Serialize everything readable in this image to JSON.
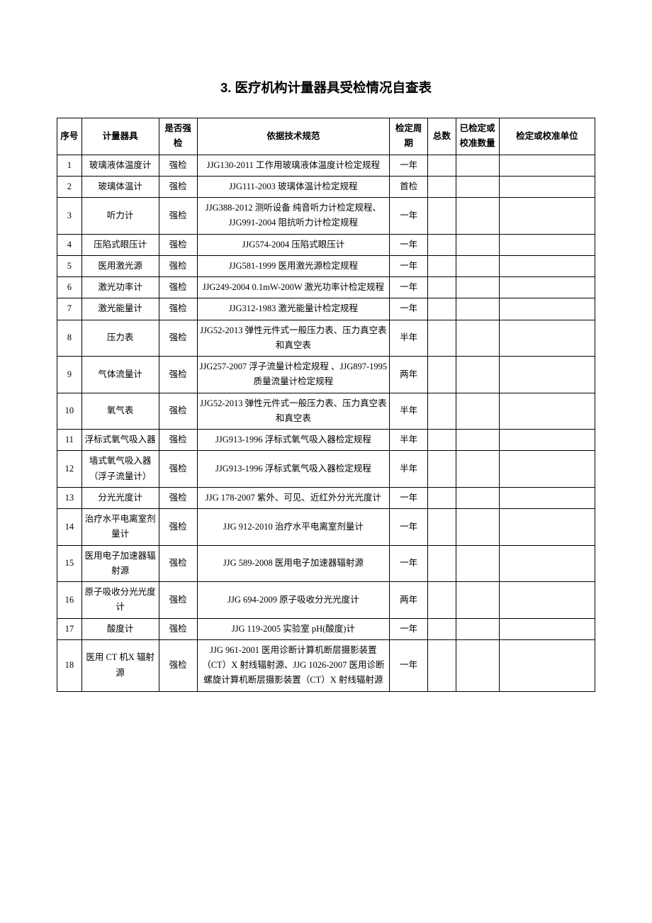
{
  "title": "3. 医疗机构计量器具受检情况自查表",
  "columns": {
    "seq": "序号",
    "instrument": "计量器具",
    "mandatory": "是否强检",
    "spec": "依据技术规范",
    "period": "检定周期",
    "total": "总数",
    "done": "已检定或校准数量",
    "unit": "检定或校准单位"
  },
  "rows": [
    {
      "seq": "1",
      "instrument": "玻璃液体温度计",
      "mandatory": "强检",
      "spec": "JJG130-2011 工作用玻璃液体温度计检定规程",
      "period": "一年",
      "total": "",
      "done": "",
      "unit": ""
    },
    {
      "seq": "2",
      "instrument": "玻璃体温计",
      "mandatory": "强检",
      "spec": "JJG111-2003 玻璃体温计检定规程",
      "period": "首检",
      "total": "",
      "done": "",
      "unit": ""
    },
    {
      "seq": "3",
      "instrument": "听力计",
      "mandatory": "强检",
      "spec": "JJG388-2012 测听设备 纯音听力计检定规程、JJG991-2004 阻抗听力计检定规程",
      "period": "一年",
      "total": "",
      "done": "",
      "unit": ""
    },
    {
      "seq": "4",
      "instrument": "压陷式眼压计",
      "mandatory": "强检",
      "spec": "JJG574-2004 压陷式眼压计",
      "period": "一年",
      "total": "",
      "done": "",
      "unit": ""
    },
    {
      "seq": "5",
      "instrument": "医用激光源",
      "mandatory": "强检",
      "spec": "JJG581-1999 医用激光源检定规程",
      "period": "一年",
      "total": "",
      "done": "",
      "unit": ""
    },
    {
      "seq": "6",
      "instrument": "激光功率计",
      "mandatory": "强检",
      "spec": "JJG249-2004 0.1mW-200W 激光功率计检定规程",
      "period": "一年",
      "total": "",
      "done": "",
      "unit": ""
    },
    {
      "seq": "7",
      "instrument": "激光能量计",
      "mandatory": "强检",
      "spec": "JJG312-1983 激光能量计检定规程",
      "period": "一年",
      "total": "",
      "done": "",
      "unit": ""
    },
    {
      "seq": "8",
      "instrument": "压力表",
      "mandatory": "强检",
      "spec": "JJG52-2013 弹性元件式一般压力表、压力真空表和真空表",
      "period": "半年",
      "total": "",
      "done": "",
      "unit": ""
    },
    {
      "seq": "9",
      "instrument": "气体流量计",
      "mandatory": "强检",
      "spec": "JJG257-2007 浮子流量计检定规程 、JJG897-1995 质量流量计检定规程",
      "period": "两年",
      "total": "",
      "done": "",
      "unit": ""
    },
    {
      "seq": "10",
      "instrument": "氧气表",
      "mandatory": "强检",
      "spec": "JJG52-2013 弹性元件式一般压力表、压力真空表和真空表",
      "period": "半年",
      "total": "",
      "done": "",
      "unit": ""
    },
    {
      "seq": "11",
      "instrument": "浮标式氧气吸入器",
      "mandatory": "强检",
      "spec": "JJG913-1996 浮标式氧气吸入器检定规程",
      "period": "半年",
      "total": "",
      "done": "",
      "unit": ""
    },
    {
      "seq": "12",
      "instrument": "墙式氧气吸入器（浮子流量计）",
      "mandatory": "强检",
      "spec": "JJG913-1996 浮标式氧气吸入器检定规程",
      "period": "半年",
      "total": "",
      "done": "",
      "unit": ""
    },
    {
      "seq": "13",
      "instrument": "分光光度计",
      "mandatory": "强检",
      "spec": "JJG 178-2007 紫外、可见、近红外分光光度计",
      "period": "一年",
      "total": "",
      "done": "",
      "unit": ""
    },
    {
      "seq": "14",
      "instrument": "治疗水平电离室剂量计",
      "mandatory": "强检",
      "spec": "JJG 912-2010 治疗水平电离室剂量计",
      "period": "一年",
      "total": "",
      "done": "",
      "unit": ""
    },
    {
      "seq": "15",
      "instrument": "医用电子加速器辐射源",
      "mandatory": "强检",
      "spec": "JJG 589-2008 医用电子加速器辐射源",
      "period": "一年",
      "total": "",
      "done": "",
      "unit": ""
    },
    {
      "seq": "16",
      "instrument": "原子吸收分光光度计",
      "mandatory": "强检",
      "spec": "JJG 694-2009 原子吸收分光光度计",
      "period": "两年",
      "total": "",
      "done": "",
      "unit": ""
    },
    {
      "seq": "17",
      "instrument": "酸度计",
      "mandatory": "强检",
      "spec": "JJG 119-2005 实验室 pH(酸度)计",
      "period": "一年",
      "total": "",
      "done": "",
      "unit": ""
    },
    {
      "seq": "18",
      "instrument": "医用 CT 机X 辐射源",
      "mandatory": "强检",
      "spec": "JJG 961-2001 医用诊断计算机断层摄影装置（CT）X 射线辐射源、JJG 1026-2007 医用诊断螺旋计算机断层摄影装置（CT）X 射线辐射源",
      "period": "一年",
      "total": "",
      "done": "",
      "unit": ""
    }
  ]
}
